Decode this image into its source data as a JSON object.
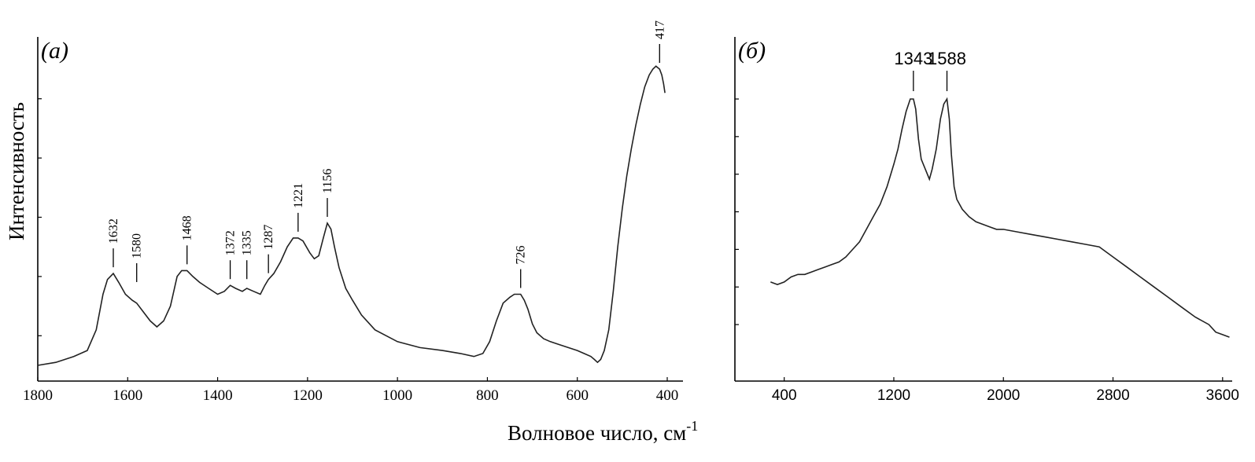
{
  "x_axis_title": "Волновое число, см",
  "x_axis_title_superscript": "-1",
  "y_axis_title": "Интенсивность",
  "chart_data": [
    {
      "panel_label": "(a)",
      "type": "line",
      "xlabel": "Волновое число, см-1",
      "ylabel": "Интенсивность",
      "xlim": [
        1800,
        400
      ],
      "x_reversed": true,
      "ylim": [
        0,
        1
      ],
      "x_ticks": [
        1800,
        1600,
        1400,
        1200,
        1000,
        800,
        600,
        400
      ],
      "x_tick_labels": [
        "1800",
        "1600",
        "1400",
        "1200",
        "1000",
        "800",
        "600",
        "400"
      ],
      "y_tick_values": [
        0.1,
        0.3,
        0.5,
        0.7,
        0.9
      ],
      "peaks": [
        {
          "label": "1632",
          "x": 1632,
          "y": 0.31
        },
        {
          "label": "1580",
          "x": 1580,
          "y": 0.26
        },
        {
          "label": "1468",
          "x": 1468,
          "y": 0.32
        },
        {
          "label": "1372",
          "x": 1372,
          "y": 0.27
        },
        {
          "label": "1335",
          "x": 1335,
          "y": 0.27
        },
        {
          "label": "1287",
          "x": 1287,
          "y": 0.29
        },
        {
          "label": "1221",
          "x": 1221,
          "y": 0.43
        },
        {
          "label": "1156",
          "x": 1156,
          "y": 0.48
        },
        {
          "label": "726",
          "x": 726,
          "y": 0.24
        },
        {
          "label": "417",
          "x": 417,
          "y": 1.0
        }
      ],
      "series": [
        {
          "x": [
            1800,
            1760,
            1720,
            1690,
            1670,
            1655,
            1645,
            1632,
            1620,
            1605,
            1590,
            1580,
            1565,
            1550,
            1535,
            1520,
            1505,
            1490,
            1480,
            1468,
            1455,
            1440,
            1420,
            1400,
            1385,
            1372,
            1360,
            1345,
            1335,
            1320,
            1305,
            1295,
            1287,
            1275,
            1260,
            1245,
            1232,
            1221,
            1210,
            1195,
            1185,
            1175,
            1165,
            1156,
            1148,
            1140,
            1130,
            1115,
            1100,
            1080,
            1050,
            1000,
            950,
            900,
            860,
            830,
            810,
            795,
            780,
            765,
            750,
            740,
            732,
            726,
            718,
            710,
            700,
            690,
            675,
            660,
            640,
            620,
            600,
            585,
            570,
            562,
            555,
            548,
            540,
            530,
            520,
            510,
            500,
            490,
            480,
            470,
            460,
            450,
            440,
            432,
            425,
            417,
            412,
            408,
            405
          ],
          "y": [
            0.0,
            0.01,
            0.03,
            0.05,
            0.12,
            0.24,
            0.29,
            0.31,
            0.28,
            0.24,
            0.22,
            0.21,
            0.18,
            0.15,
            0.13,
            0.15,
            0.2,
            0.3,
            0.32,
            0.32,
            0.3,
            0.28,
            0.26,
            0.24,
            0.25,
            0.27,
            0.26,
            0.25,
            0.26,
            0.25,
            0.24,
            0.27,
            0.29,
            0.31,
            0.35,
            0.4,
            0.43,
            0.43,
            0.42,
            0.38,
            0.36,
            0.37,
            0.43,
            0.48,
            0.46,
            0.4,
            0.33,
            0.26,
            0.22,
            0.17,
            0.12,
            0.08,
            0.06,
            0.05,
            0.04,
            0.03,
            0.04,
            0.08,
            0.15,
            0.21,
            0.23,
            0.24,
            0.24,
            0.24,
            0.22,
            0.19,
            0.14,
            0.11,
            0.09,
            0.08,
            0.07,
            0.06,
            0.05,
            0.04,
            0.03,
            0.02,
            0.01,
            0.02,
            0.05,
            0.12,
            0.25,
            0.4,
            0.53,
            0.64,
            0.73,
            0.81,
            0.88,
            0.94,
            0.98,
            1.0,
            1.01,
            1.0,
            0.98,
            0.95,
            0.92
          ]
        }
      ]
    },
    {
      "panel_label": "(б)",
      "type": "line",
      "xlim": [
        40,
        3670
      ],
      "ylim": [
        0,
        1
      ],
      "x_ticks": [
        400,
        1200,
        2000,
        2800,
        3600
      ],
      "x_tick_labels": [
        "400",
        "1200",
        "2000",
        "2800",
        "3600"
      ],
      "y_tick_values": [
        0.1,
        0.25,
        0.4,
        0.55,
        0.7,
        0.85,
        1.0
      ],
      "peaks": [
        {
          "label": "1343",
          "x": 1343,
          "y": 1.0
        },
        {
          "label": "1588",
          "x": 1588,
          "y": 1.0
        }
      ],
      "series": [
        {
          "x": [
            300,
            350,
            400,
            450,
            500,
            550,
            600,
            650,
            700,
            750,
            800,
            850,
            900,
            950,
            1000,
            1050,
            1100,
            1150,
            1200,
            1230,
            1260,
            1290,
            1320,
            1343,
            1360,
            1380,
            1400,
            1430,
            1460,
            1480,
            1510,
            1540,
            1565,
            1588,
            1605,
            1620,
            1640,
            1660,
            1700,
            1750,
            1800,
            1850,
            1900,
            1950,
            2000,
            2100,
            2200,
            2300,
            2400,
            2500,
            2600,
            2700,
            2750,
            2800,
            2900,
            3000,
            3100,
            3200,
            3300,
            3400,
            3500,
            3550,
            3600,
            3650
          ],
          "y": [
            0.27,
            0.26,
            0.27,
            0.29,
            0.3,
            0.3,
            0.31,
            0.32,
            0.33,
            0.34,
            0.35,
            0.37,
            0.4,
            0.43,
            0.48,
            0.53,
            0.58,
            0.65,
            0.74,
            0.8,
            0.88,
            0.95,
            1.0,
            1.0,
            0.96,
            0.84,
            0.76,
            0.72,
            0.68,
            0.72,
            0.8,
            0.92,
            0.98,
            1.0,
            0.92,
            0.78,
            0.65,
            0.6,
            0.56,
            0.53,
            0.51,
            0.5,
            0.49,
            0.48,
            0.48,
            0.47,
            0.46,
            0.45,
            0.44,
            0.43,
            0.42,
            0.41,
            0.39,
            0.37,
            0.33,
            0.29,
            0.25,
            0.21,
            0.17,
            0.13,
            0.1,
            0.07,
            0.06,
            0.05
          ]
        }
      ]
    }
  ]
}
